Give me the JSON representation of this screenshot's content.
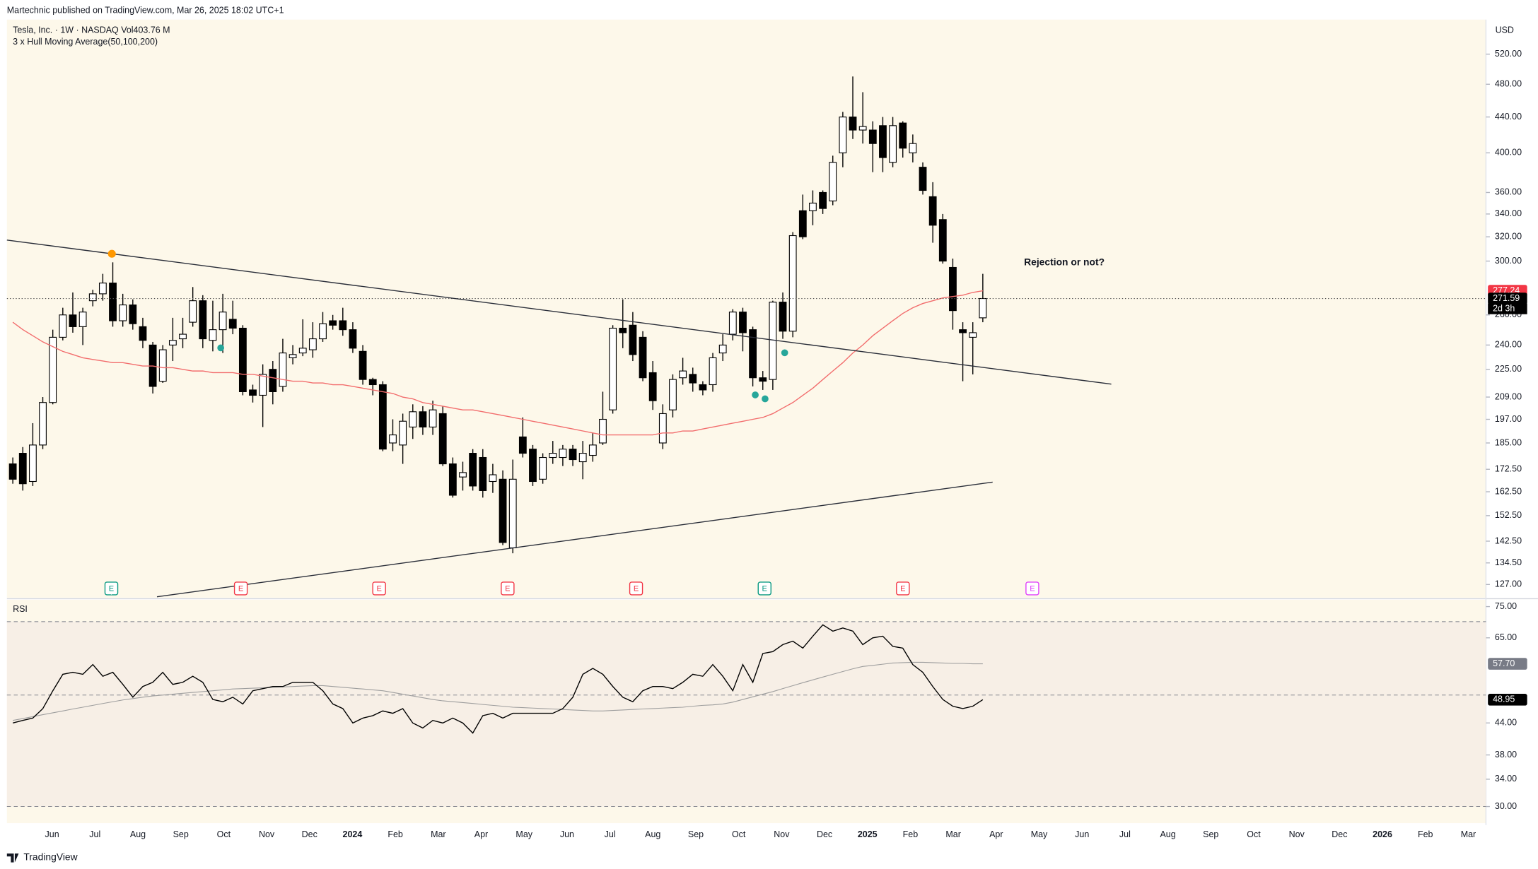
{
  "header": "Martechnic published on TradingView.com, Mar 26, 2025 18:02 UTC+1",
  "footer": "TradingView",
  "chart_data": [
    {
      "type": "candlestick",
      "title": "Tesla, Inc. · 1W · NASDAQ  Vol403.76 M",
      "subtitle": "3 x Hull Moving Average(50,100,200)",
      "currency": "USD",
      "annotation": "Rejection or not?",
      "countdown": "2d 3h",
      "log_scale": true,
      "up_color": "#ffffff",
      "down_color": "#000000",
      "ylim": [
        122.6,
        570
      ],
      "yticks": [
        {
          "value": 127,
          "label": "127.00"
        },
        {
          "value": 134.5,
          "label": "134.50"
        },
        {
          "value": 142.5,
          "label": "142.50"
        },
        {
          "value": 152.5,
          "label": "152.50"
        },
        {
          "value": 162.5,
          "label": "162.50"
        },
        {
          "value": 172.5,
          "label": "172.50"
        },
        {
          "value": 185,
          "label": "185.00"
        },
        {
          "value": 197,
          "label": "197.00"
        },
        {
          "value": 209,
          "label": "209.00"
        },
        {
          "value": 225,
          "label": "225.00"
        },
        {
          "value": 240,
          "label": "240.00"
        },
        {
          "value": 260,
          "label": "260.00"
        },
        {
          "value": 300,
          "label": "300.00"
        },
        {
          "value": 320,
          "label": "320.00"
        },
        {
          "value": 340,
          "label": "340.00"
        },
        {
          "value": 360,
          "label": "360.00"
        },
        {
          "value": 400,
          "label": "400.00"
        },
        {
          "value": 440,
          "label": "440.00"
        },
        {
          "value": 480,
          "label": "480.00"
        },
        {
          "value": 520,
          "label": "520.00"
        }
      ],
      "x_labels": [
        "Jun",
        "Jul",
        "Aug",
        "Sep",
        "Oct",
        "Nov",
        "Dec",
        "2024",
        "Feb",
        "Mar",
        "Apr",
        "May",
        "Jun",
        "Jul",
        "Aug",
        "Sep",
        "Oct",
        "Nov",
        "Dec",
        "2025",
        "Feb",
        "Mar",
        "Apr",
        "May",
        "Jun",
        "Jul",
        "Aug",
        "Sep",
        "Oct",
        "Nov",
        "Dec",
        "2026",
        "Feb",
        "Mar"
      ],
      "open": [
        175,
        180,
        167,
        184,
        206,
        245,
        260,
        252,
        270,
        275,
        283,
        256,
        267,
        252,
        240,
        218,
        240,
        244,
        255,
        270,
        243,
        250,
        257,
        251,
        213,
        210,
        225,
        215,
        232,
        235,
        237,
        244,
        256,
        256,
        250,
        236,
        219,
        216,
        185,
        184,
        193,
        201,
        193,
        200,
        175,
        169,
        180,
        178,
        167,
        168,
        140,
        188,
        182,
        168,
        178,
        178,
        182,
        176,
        179,
        185,
        202,
        251,
        253,
        245,
        223,
        185,
        202,
        220,
        222,
        216,
        216,
        235,
        247,
        262,
        250,
        220,
        219,
        269,
        249,
        343,
        343,
        360,
        352,
        400,
        440,
        425,
        425,
        430,
        390,
        433,
        400,
        385,
        356,
        335,
        295,
        250,
        245,
        258
      ],
      "high": [
        178,
        183,
        195,
        209,
        250,
        265,
        276,
        265,
        278,
        290,
        299,
        275,
        271,
        258,
        242,
        240,
        258,
        258,
        280,
        274,
        270,
        275,
        270,
        253,
        216,
        228,
        230,
        244,
        240,
        257,
        255,
        262,
        260,
        265,
        255,
        240,
        220,
        218,
        197,
        200,
        205,
        204,
        207,
        204,
        178,
        176,
        182,
        182,
        175,
        172,
        177,
        198,
        184,
        180,
        186,
        184,
        184,
        186,
        190,
        212,
        253,
        271,
        262,
        249,
        230,
        205,
        222,
        232,
        226,
        218,
        235,
        247,
        264,
        265,
        252,
        224,
        270,
        276,
        324,
        358,
        362,
        362,
        397,
        446,
        490,
        470,
        435,
        440,
        440,
        435,
        420,
        390,
        370,
        340,
        302,
        255,
        255,
        290
      ],
      "low": [
        166,
        163,
        165,
        182,
        205,
        243,
        248,
        240,
        266,
        270,
        252,
        252,
        250,
        238,
        211,
        217,
        230,
        238,
        252,
        238,
        236,
        235,
        247,
        210,
        206,
        193,
        205,
        212,
        228,
        233,
        232,
        242,
        250,
        246,
        235,
        216,
        210,
        181,
        181,
        175,
        187,
        189,
        189,
        174,
        160,
        163,
        163,
        160,
        162,
        141,
        138,
        178,
        165,
        166,
        175,
        174,
        174,
        168,
        176,
        184,
        200,
        238,
        230,
        218,
        202,
        182,
        198,
        216,
        212,
        210,
        212,
        230,
        243,
        236,
        215,
        213,
        213,
        244,
        245,
        318,
        330,
        340,
        348,
        385,
        415,
        410,
        380,
        380,
        385,
        395,
        390,
        358,
        315,
        298,
        250,
        218,
        222,
        255
      ],
      "close": [
        168,
        166,
        184,
        206,
        245,
        260,
        252,
        262,
        275,
        283,
        256,
        267,
        254,
        243,
        215,
        237,
        243,
        247,
        270,
        244,
        250,
        262,
        251,
        212,
        210,
        222,
        212,
        235,
        234,
        238,
        244,
        254,
        253,
        250,
        238,
        219,
        216,
        182,
        189,
        196,
        201,
        193,
        202,
        175,
        161,
        171,
        165,
        163,
        170,
        142,
        168,
        180,
        167,
        178,
        180,
        182,
        177,
        180,
        184,
        197,
        251,
        248,
        234,
        220,
        207,
        200,
        219,
        224,
        217,
        213,
        232,
        240,
        262,
        248,
        220,
        218,
        269,
        249,
        321,
        320,
        350,
        345,
        390,
        440,
        425,
        429,
        410,
        395,
        430,
        405,
        410,
        362,
        330,
        300,
        263,
        248,
        248,
        271.59
      ],
      "ma": {
        "color": "#f26d6d",
        "values": [
          255,
          250,
          246,
          242,
          239,
          236,
          234,
          232,
          231,
          230,
          229,
          229,
          228,
          227,
          227,
          226,
          226,
          225,
          224,
          224,
          223,
          223,
          223,
          222,
          222,
          221,
          220,
          219,
          218,
          218,
          217,
          217,
          216,
          216,
          215,
          214,
          213,
          212,
          211,
          209,
          208,
          206,
          205,
          204,
          203,
          202,
          202,
          201,
          200,
          199,
          198,
          197,
          196,
          195,
          194,
          193,
          192,
          191,
          190,
          189,
          189,
          189,
          189,
          189,
          189,
          190,
          190,
          191,
          191,
          192,
          193,
          194,
          195,
          196,
          197,
          198,
          200,
          203,
          206,
          210,
          214,
          219,
          224,
          229,
          235,
          240,
          246,
          251,
          256,
          261,
          265,
          268,
          270,
          272,
          273,
          274,
          276,
          277.24
        ]
      }
    },
    {
      "type": "line",
      "title": "RSI",
      "log_scale": true,
      "ylim": [
        27.8,
        77.4
      ],
      "yticks": [
        {
          "value": 30,
          "label": "30.00"
        },
        {
          "value": 34,
          "label": "34.00"
        },
        {
          "value": 38,
          "label": "38.00"
        },
        {
          "value": 44,
          "label": "44.00"
        },
        {
          "value": 65,
          "label": "65.00"
        },
        {
          "value": 75,
          "label": "75.00"
        }
      ],
      "levels": [
        70,
        50,
        30
      ],
      "band_color": "#f7efe6",
      "series": [
        {
          "color": "#000000",
          "values": [
            44,
            44.5,
            45,
            47,
            51,
            55,
            55.5,
            55,
            57.5,
            54.5,
            55.5,
            52.5,
            49.5,
            52,
            53,
            55.5,
            52.5,
            53,
            54.5,
            53,
            49,
            48.5,
            49.5,
            48,
            51,
            51.5,
            52,
            52,
            53,
            53,
            53,
            51,
            48,
            47,
            44,
            45,
            45.5,
            46.5,
            46,
            47,
            44,
            43,
            44.5,
            44,
            45,
            44,
            42,
            45.5,
            46,
            45,
            46,
            46,
            46,
            46,
            46,
            47,
            49.5,
            55,
            56.5,
            55,
            52,
            49.5,
            48.5,
            51,
            52,
            52,
            51.5,
            53,
            55,
            54.5,
            57.5,
            54.5,
            51,
            57.5,
            53,
            60.5,
            61,
            63,
            64,
            62,
            65.5,
            69,
            67,
            68,
            67,
            63,
            65,
            65.5,
            62.5,
            62,
            57.5,
            55.5,
            52,
            49,
            47.5,
            47,
            47.5,
            48.95
          ]
        },
        {
          "color": "#9e9e9e",
          "last_label": "57.70",
          "values": [
            44.5,
            44.9,
            45.3,
            45.7,
            46.1,
            46.5,
            46.9,
            47.3,
            47.7,
            48.1,
            48.5,
            48.9,
            49.2,
            49.5,
            49.8,
            50,
            50.2,
            50.4,
            50.6,
            50.8,
            51,
            51.2,
            51.4,
            51.5,
            51.6,
            51.7,
            51.8,
            51.9,
            52,
            52.1,
            52.2,
            52.2,
            52,
            51.8,
            51.6,
            51.4,
            51.2,
            51,
            50.6,
            50.2,
            49.8,
            49.4,
            49,
            48.7,
            48.5,
            48.3,
            48.1,
            47.9,
            47.7,
            47.5,
            47.3,
            47.2,
            47.1,
            47,
            46.9,
            46.8,
            46.7,
            46.6,
            46.5,
            46.5,
            46.6,
            46.7,
            46.8,
            46.9,
            47,
            47.1,
            47.2,
            47.3,
            47.5,
            47.7,
            47.8,
            48,
            48.4,
            49,
            49.6,
            50.2,
            50.8,
            51.5,
            52.2,
            52.9,
            53.6,
            54.3,
            55,
            55.7,
            56.4,
            57,
            57.3,
            57.6,
            57.9,
            58,
            58.1,
            58.1,
            58,
            57.9,
            57.8,
            57.8,
            57.7,
            57.7
          ]
        }
      ]
    }
  ]
}
